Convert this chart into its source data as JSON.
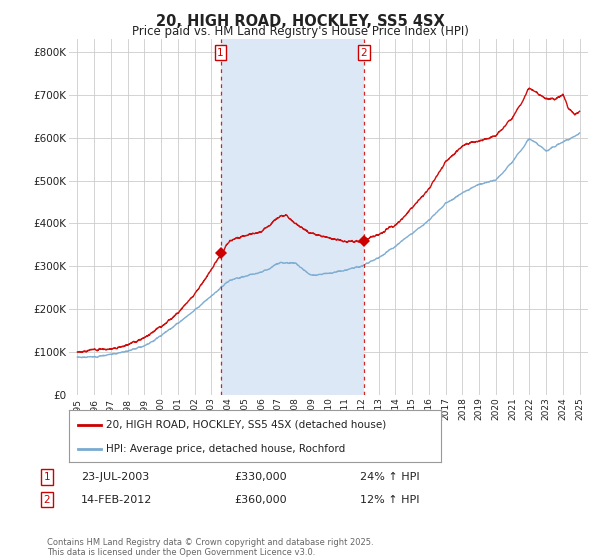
{
  "title": "20, HIGH ROAD, HOCKLEY, SS5 4SX",
  "subtitle": "Price paid vs. HM Land Registry's House Price Index (HPI)",
  "ylabel_ticks": [
    "£0",
    "£100K",
    "£200K",
    "£300K",
    "£400K",
    "£500K",
    "£600K",
    "£700K",
    "£800K"
  ],
  "ytick_values": [
    0,
    100000,
    200000,
    300000,
    400000,
    500000,
    600000,
    700000,
    800000
  ],
  "ylim": [
    0,
    830000
  ],
  "xlim_start": 1994.5,
  "xlim_end": 2025.5,
  "fig_bg": "#ffffff",
  "plot_bg": "#ffffff",
  "grid_color": "#cccccc",
  "shaded_color": "#dce8f5",
  "red_line_color": "#cc0000",
  "blue_line_color": "#7aaad0",
  "marker1_x": 2003.55,
  "marker2_x": 2012.12,
  "marker1_y": 330000,
  "marker2_y": 360000,
  "legend_label_red": "20, HIGH ROAD, HOCKLEY, SS5 4SX (detached house)",
  "legend_label_blue": "HPI: Average price, detached house, Rochford",
  "annotation1_date": "23-JUL-2003",
  "annotation1_price": "£330,000",
  "annotation1_hpi": "24% ↑ HPI",
  "annotation2_date": "14-FEB-2012",
  "annotation2_price": "£360,000",
  "annotation2_hpi": "12% ↑ HPI",
  "footer": "Contains HM Land Registry data © Crown copyright and database right 2025.\nThis data is licensed under the Open Government Licence v3.0.",
  "xtick_years": [
    1995,
    1996,
    1997,
    1998,
    1999,
    2000,
    2001,
    2002,
    2003,
    2004,
    2005,
    2006,
    2007,
    2008,
    2009,
    2010,
    2011,
    2012,
    2013,
    2014,
    2015,
    2016,
    2017,
    2018,
    2019,
    2020,
    2021,
    2022,
    2023,
    2024,
    2025
  ],
  "hpi_keypoints_x": [
    1995,
    1996,
    1997,
    1998,
    1999,
    2000,
    2001,
    2002,
    2003,
    2004,
    2005,
    2006,
    2007,
    2008,
    2009,
    2010,
    2011,
    2012,
    2013,
    2014,
    2015,
    2016,
    2017,
    2018,
    2019,
    2020,
    2021,
    2022,
    2023,
    2024,
    2025
  ],
  "hpi_keypoints_y": [
    88000,
    90000,
    95000,
    103000,
    115000,
    140000,
    170000,
    200000,
    230000,
    265000,
    275000,
    285000,
    305000,
    305000,
    275000,
    280000,
    288000,
    298000,
    318000,
    345000,
    375000,
    405000,
    445000,
    468000,
    490000,
    500000,
    545000,
    600000,
    570000,
    590000,
    610000
  ],
  "prop_keypoints_x": [
    1995,
    1996,
    1997,
    1998,
    1999,
    2000,
    2001,
    2002,
    2003,
    2003.55,
    2004,
    2005,
    2006,
    2007,
    2007.5,
    2008,
    2009,
    2010,
    2011,
    2011.5,
    2012,
    2012.12,
    2013,
    2014,
    2015,
    2016,
    2017,
    2018,
    2019,
    2020,
    2021,
    2021.5,
    2022,
    2022.3,
    2022.7,
    2023,
    2023.5,
    2024,
    2024.3,
    2024.7,
    2025
  ],
  "prop_keypoints_y": [
    100000,
    103000,
    108000,
    118000,
    135000,
    160000,
    195000,
    240000,
    295000,
    330000,
    360000,
    375000,
    385000,
    415000,
    420000,
    400000,
    375000,
    368000,
    360000,
    358000,
    360000,
    360000,
    375000,
    400000,
    440000,
    480000,
    545000,
    580000,
    595000,
    605000,
    650000,
    680000,
    720000,
    710000,
    700000,
    695000,
    690000,
    700000,
    670000,
    655000,
    660000
  ]
}
